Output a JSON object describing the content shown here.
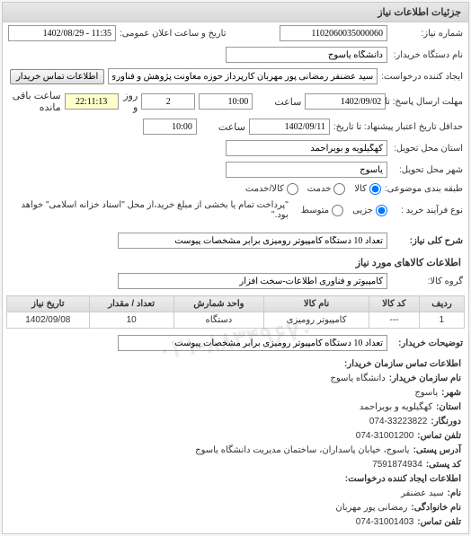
{
  "panel_title": "جزئیات اطلاعات نیاز",
  "form": {
    "request_no_label": "شماره نیاز:",
    "request_no": "1102060035000060",
    "announce_date_label": "تاریخ و ساعت اعلان عمومی:",
    "announce_date": "11:35 - 1402/08/29",
    "buyer_label": "نام دستگاه خریدار:",
    "buyer": "دانشگاه یاسوج",
    "requester_label": "ایجاد کننده درخواست:",
    "requester": "سید عضنفر رمضانی پور مهربان کارپرداز حوزه معاونت پژوهش و فناوری دانشگاه",
    "contact_btn": "اطلاعات تماس خریدار",
    "deadline_send_label": "مهلت ارسال پاسخ: تا تاریخ:",
    "deadline_send_date": "1402/09/02",
    "time_label": "ساعت",
    "deadline_send_time": "10:00",
    "remaining_days": "2",
    "day_label": "روز و",
    "remaining_time": "22:11:13",
    "remaining_label": "ساعت باقی مانده",
    "min_validity_label": "حداقل تاریخ اعتبار پیشنهاد: تا تاریخ:",
    "min_validity_date": "1402/09/11",
    "min_validity_time": "10:00",
    "province_label": "استان محل تحویل:",
    "province": "کهگیلویه و بویراحمد",
    "city_label": "شهر محل تحویل:",
    "city": "یاسوج",
    "subject_type_label": "طبقه بندی موضوعی:",
    "subject_types": {
      "goods": "کالا",
      "service": "خدمت",
      "both": "کالا/خدمت"
    },
    "purchase_type_label": "نوع فرآیند خرید :",
    "purchase_types": {
      "partial": "جزیی",
      "medium": "متوسط"
    },
    "payment_note": "\"پرداخت تمام یا بخشی از مبلغ خرید،از محل \"اسناد خزانه اسلامی\" خواهد بود.\"",
    "summary_label": "شرح کلی نیاز:",
    "summary": "تعداد 10 دستگاه کامپیوتر رومیزی برابر مشخصات پیوست",
    "items_title": "اطلاعات کالاهای مورد نیاز",
    "group_label": "گروه کالا:",
    "group": "کامپیوتر و فناوری اطلاعات-سخت افزار"
  },
  "table": {
    "columns": [
      "ردیف",
      "کد کالا",
      "نام کالا",
      "واحد شمارش",
      "تعداد / مقدار",
      "تاریخ نیاز"
    ],
    "rows": [
      [
        "1",
        "---",
        "کامپیوتر رومیزی",
        "دستگاه",
        "10",
        "1402/09/08"
      ]
    ]
  },
  "buyer_notes_label": "توضیحات خریدار:",
  "buyer_notes": "تعداد 10 دستگاه کامپیوتر رومیزی برابر مشخصات پیوست",
  "contact": {
    "title": "اطلاعات تماس سازمان خریدار:",
    "org_label": "نام سازمان خریدار:",
    "org": "دانشگاه یاسوج",
    "city_label": "شهر:",
    "city": "یاسوج",
    "province_label": "استان:",
    "province": "کهگیلویه و بویراحمد",
    "btn_label": "دورنگار:",
    "btn": "074-33223822",
    "phone_label": "تلفن تماس:",
    "phone": "074-31001200",
    "address_label": "آدرس پستی:",
    "address": "یاسوج، خیابان پاسداران، ساختمان مدیریت دانشگاه یاسوج",
    "postal_label": "کد پستی:",
    "postal": "7591874934",
    "requester_title": "اطلاعات ایجاد کننده درخواست:",
    "name_label": "نام:",
    "name": "سید عضنفر",
    "family_label": "نام خانوادگی:",
    "family": "رمضانی پور مهربان",
    "req_phone_label": "تلفن تماس:",
    "req_phone": "074-31001403"
  },
  "watermark": "۰۲۱-۸۸۳۴۹۶۷۰"
}
